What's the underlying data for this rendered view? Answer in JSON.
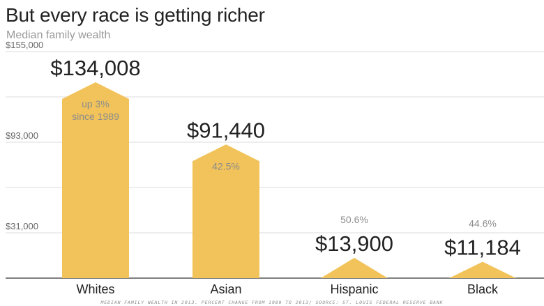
{
  "header": {
    "title": "But every race is getting richer",
    "subtitle": "Median family wealth"
  },
  "source_note": "MEDIAN FAMILY WEALTH IN 2013. PERCENT CHANGE FROM 1989 TO 2013/ SOURCE: ST. LOUIS FEDERAL RESERVE BANK",
  "colors": {
    "bar": "#f2c35a",
    "grid": "#dddddd",
    "axis": "#555555",
    "annotation": "#8c8c8c",
    "value_label": "#222222"
  },
  "chart_data": {
    "type": "bar",
    "title": "But every race is getting richer",
    "subtitle": "Median family wealth",
    "categories": [
      "Whites",
      "Asian",
      "Hispanic",
      "Black"
    ],
    "values": [
      134008,
      91440,
      13900,
      11184
    ],
    "value_labels": [
      "$134,008",
      "$91,440",
      "$13,900",
      "$11,184"
    ],
    "annotations": [
      [
        "up 3%",
        "since 1989"
      ],
      [
        "42.5%"
      ],
      [
        "50.6%"
      ],
      [
        "44.6%"
      ]
    ],
    "ylim": [
      0,
      155000
    ],
    "yticks": [
      31000,
      93000,
      155000
    ],
    "ytick_labels": [
      "$31,000",
      "$93,000",
      "$155,000"
    ],
    "xlabel": "",
    "ylabel": "",
    "grid": true,
    "legend": "none"
  }
}
